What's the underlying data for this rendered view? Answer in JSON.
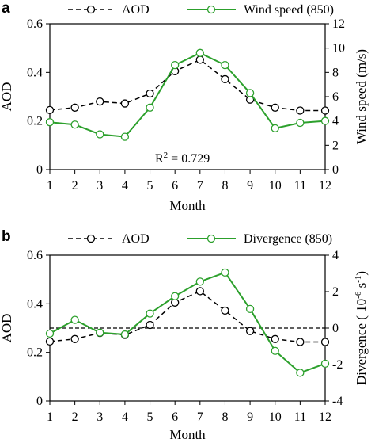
{
  "chart_data": [
    {
      "type": "line",
      "panel_label": "a",
      "x": [
        1,
        2,
        3,
        4,
        5,
        6,
        7,
        8,
        9,
        10,
        11,
        12
      ],
      "xlabel": "Month",
      "xticks": [
        "1",
        "2",
        "3",
        "4",
        "5",
        "6",
        "7",
        "8",
        "9",
        "10",
        "11",
        "12"
      ],
      "ylabel": "AOD",
      "ylim": [
        0,
        0.6
      ],
      "yticks": [
        "0",
        "0.2",
        "0.4",
        "0.6"
      ],
      "y2label": "Wind speed (m/s)",
      "y2lim": [
        0,
        12
      ],
      "y2ticks": [
        "0",
        "2",
        "4",
        "6",
        "8",
        "10",
        "12"
      ],
      "series": [
        {
          "name": "AOD",
          "axis": "left",
          "style": "dashed",
          "color": "#000000",
          "values": [
            0.245,
            0.255,
            0.28,
            0.272,
            0.313,
            0.405,
            0.452,
            0.372,
            0.288,
            0.255,
            0.243,
            0.243
          ]
        },
        {
          "name": "Wind speed (850)",
          "axis": "right",
          "style": "solid",
          "color": "#2ca02c",
          "values": [
            3.9,
            3.7,
            2.9,
            2.7,
            5.1,
            8.6,
            9.6,
            8.6,
            6.3,
            3.4,
            3.85,
            4.0
          ]
        }
      ],
      "annotation": {
        "prefix": "R",
        "sup": "2",
        "suffix": " = 0.729"
      },
      "legend": "top"
    },
    {
      "type": "line",
      "panel_label": "b",
      "x": [
        1,
        2,
        3,
        4,
        5,
        6,
        7,
        8,
        9,
        10,
        11,
        12
      ],
      "xlabel": "Month",
      "xticks": [
        "1",
        "2",
        "3",
        "4",
        "5",
        "6",
        "7",
        "8",
        "9",
        "10",
        "11",
        "12"
      ],
      "ylabel": "AOD",
      "ylim": [
        0,
        0.6
      ],
      "yticks": [
        "0",
        "0.2",
        "0.4",
        "0.6"
      ],
      "y2label_prefix": "Divergence ( 10",
      "y2label_sup": "-6",
      "y2label_mid": " s",
      "y2label_sup2": "-1",
      "y2label_suffix": ")",
      "y2lim": [
        -4,
        4
      ],
      "y2ticks": [
        "-4",
        "-2",
        "0",
        "2",
        "4"
      ],
      "zero_line": 0,
      "series": [
        {
          "name": "AOD",
          "axis": "left",
          "style": "dashed",
          "color": "#000000",
          "values": [
            0.245,
            0.255,
            0.28,
            0.272,
            0.313,
            0.405,
            0.452,
            0.372,
            0.288,
            0.255,
            0.243,
            0.243
          ]
        },
        {
          "name": "Divergence (850)",
          "axis": "right",
          "style": "solid",
          "color": "#2ca02c",
          "values": [
            -0.3,
            0.45,
            -0.25,
            -0.35,
            0.8,
            1.75,
            2.55,
            3.05,
            1.05,
            -1.25,
            -2.45,
            -1.95
          ]
        }
      ],
      "legend": "top"
    }
  ]
}
